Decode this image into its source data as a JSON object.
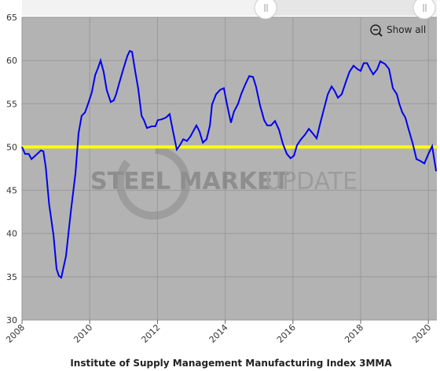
{
  "chart_data": {
    "type": "line",
    "title": "Institute of Supply Management Manufacturing Index 3MMA",
    "show_all": "Show all",
    "watermark": {
      "bold": "STEEL MARKET",
      "light": "UPDATE"
    },
    "color": "#0000ee",
    "reference_line": {
      "value": 50,
      "color": "#ffff00"
    },
    "xlim": [
      2008,
      2020.25
    ],
    "xticks": [
      2008,
      2010,
      2012,
      2014,
      2016,
      2018,
      2020
    ],
    "ylim": [
      30,
      65
    ],
    "yticks": [
      30,
      35,
      40,
      45,
      50,
      55,
      60,
      65
    ],
    "grid": true,
    "x": [
      2008.0,
      2008.09,
      2008.2,
      2008.28,
      2008.42,
      2008.56,
      2008.63,
      2008.7,
      2008.8,
      2008.93,
      2009.02,
      2009.09,
      2009.16,
      2009.3,
      2009.44,
      2009.58,
      2009.67,
      2009.76,
      2009.86,
      2009.97,
      2010.06,
      2010.16,
      2010.25,
      2010.32,
      2010.41,
      2010.5,
      2010.62,
      2010.71,
      2010.78,
      2010.88,
      2010.99,
      2011.11,
      2011.18,
      2011.25,
      2011.34,
      2011.43,
      2011.53,
      2011.6,
      2011.69,
      2011.83,
      2011.94,
      2012.01,
      2012.13,
      2012.25,
      2012.36,
      2012.45,
      2012.57,
      2012.66,
      2012.76,
      2012.87,
      2012.97,
      2013.08,
      2013.15,
      2013.24,
      2013.34,
      2013.45,
      2013.55,
      2013.61,
      2013.73,
      2013.85,
      2013.96,
      2014.06,
      2014.17,
      2014.26,
      2014.38,
      2014.47,
      2014.59,
      2014.71,
      2014.82,
      2014.91,
      2015.03,
      2015.15,
      2015.24,
      2015.35,
      2015.47,
      2015.59,
      2015.7,
      2015.82,
      2015.93,
      2016.03,
      2016.12,
      2016.24,
      2016.35,
      2016.47,
      2016.58,
      2016.7,
      2016.79,
      2016.91,
      2017.03,
      2017.14,
      2017.23,
      2017.33,
      2017.44,
      2017.56,
      2017.67,
      2017.79,
      2017.91,
      2018.0,
      2018.09,
      2018.19,
      2018.28,
      2018.37,
      2018.49,
      2018.58,
      2018.72,
      2018.84,
      2018.95,
      2019.07,
      2019.14,
      2019.23,
      2019.32,
      2019.42,
      2019.53,
      2019.65,
      2019.76,
      2019.88,
      2020.0,
      2020.11,
      2020.23
    ],
    "values": [
      50.0,
      49.2,
      49.2,
      48.6,
      49.1,
      49.6,
      49.5,
      47.7,
      43.4,
      39.8,
      35.9,
      35.1,
      34.9,
      37.4,
      42.5,
      47.0,
      51.6,
      53.6,
      54.0,
      55.2,
      56.3,
      58.3,
      59.2,
      60.0,
      58.7,
      56.6,
      55.2,
      55.4,
      56.1,
      57.5,
      59.0,
      60.5,
      61.1,
      61.0,
      58.8,
      56.8,
      53.6,
      53.1,
      52.2,
      52.4,
      52.4,
      53.1,
      53.2,
      53.4,
      53.8,
      52.0,
      49.7,
      50.2,
      50.9,
      50.7,
      51.2,
      52.0,
      52.5,
      51.8,
      50.5,
      50.9,
      52.5,
      54.9,
      56.1,
      56.6,
      56.8,
      54.8,
      52.8,
      54.1,
      55.0,
      56.1,
      57.2,
      58.2,
      58.1,
      57.0,
      54.8,
      53.1,
      52.5,
      52.5,
      53.0,
      52.0,
      50.4,
      49.2,
      48.7,
      49.0,
      50.2,
      50.9,
      51.4,
      52.1,
      51.6,
      51.0,
      52.5,
      54.3,
      56.1,
      57.0,
      56.5,
      55.7,
      56.1,
      57.5,
      58.7,
      59.4,
      59.0,
      58.8,
      59.7,
      59.7,
      59.0,
      58.4,
      59.0,
      59.9,
      59.6,
      59.0,
      56.8,
      56.1,
      55.0,
      54.0,
      53.4,
      52.0,
      50.5,
      48.6,
      48.4,
      48.1,
      49.2,
      50.1,
      47.2
    ]
  }
}
